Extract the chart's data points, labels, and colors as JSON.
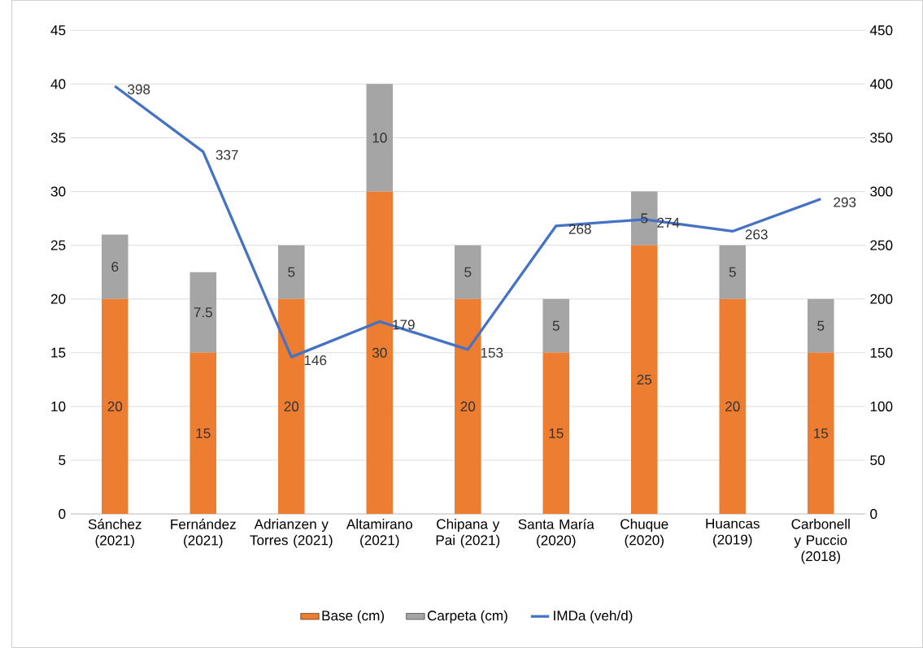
{
  "chart_data": {
    "type": "bar",
    "stacked": true,
    "data_labels": true,
    "grid": "y",
    "legend": "bottom",
    "categories": [
      "Sánchez (2021)",
      "Fernández (2021)",
      "Adrianzen y Torres (2021)",
      "Altamirano (2021)",
      "Chipana y Pai (2021)",
      "Santa María (2020)",
      "Chuque (2020)",
      "Huancas (2019)",
      "Carbonell y Puccio (2018)"
    ],
    "series": [
      {
        "name": "Base (cm)",
        "color": "#ed7d31",
        "values": [
          20,
          15,
          20,
          30,
          20,
          15,
          25,
          20,
          15
        ]
      },
      {
        "name": "Carpeta (cm)",
        "color": "#a5a5a5",
        "values": [
          6,
          7.5,
          5,
          10,
          5,
          5,
          5,
          5,
          5
        ]
      },
      {
        "name": "IMDa (veh/d)",
        "type": "line",
        "axis": "y2",
        "color": "#4472c4",
        "values": [
          398,
          337,
          146,
          179,
          153,
          268,
          274,
          263,
          293
        ]
      }
    ],
    "ylim": [
      0,
      45
    ],
    "yticks": [
      0,
      5,
      10,
      15,
      20,
      25,
      30,
      35,
      40,
      45
    ],
    "y2lim": [
      0,
      450
    ],
    "y2ticks": [
      0,
      50,
      100,
      150,
      200,
      250,
      300,
      350,
      400,
      450
    ]
  }
}
